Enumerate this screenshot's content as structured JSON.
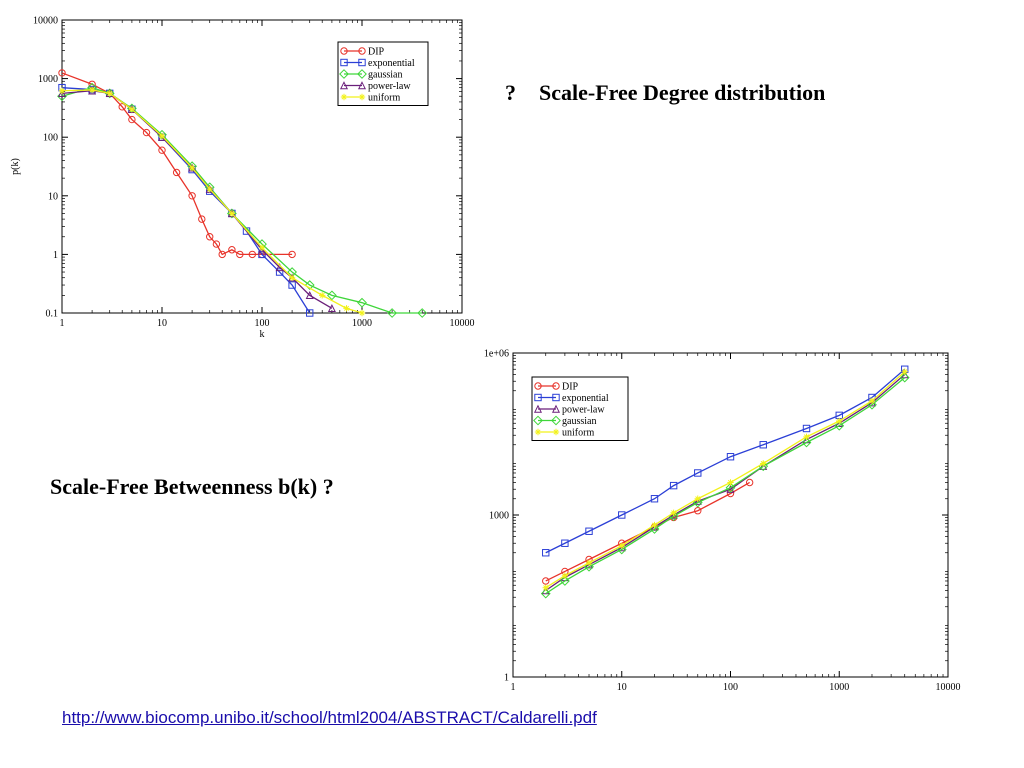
{
  "slide": {
    "heading_degree": "Scale-Free Degree distribution",
    "heading_degree_bullet": "?",
    "heading_betweenness": "Scale-Free Betweenness b(k) ?",
    "source_link": "http://www.biocomp.unibo.it/school/html2004/ABSTRACT/Caldarelli.pdf"
  },
  "chart_data": [
    {
      "type": "line",
      "log_x": true,
      "log_y": true,
      "xlabel": "k",
      "ylabel": "p(k)",
      "xlim": [
        1,
        10000
      ],
      "ylim": [
        0.1,
        10000
      ],
      "x_ticks": [
        "1",
        "10",
        "100",
        "1000",
        "10000"
      ],
      "y_ticks": [
        "0.1",
        "1",
        "10",
        "100",
        "1000",
        "10000"
      ],
      "legend_position": "top-right",
      "series": [
        {
          "name": "DIP",
          "color": "#e8332a",
          "marker": "circle",
          "x": [
            1,
            2,
            3,
            4,
            5,
            7,
            10,
            14,
            20,
            25,
            30,
            35,
            40,
            50,
            60,
            80,
            100,
            200
          ],
          "y": [
            1250,
            800,
            560,
            330,
            200,
            120,
            60,
            25,
            10,
            4,
            2,
            1.5,
            1,
            1.2,
            1,
            1,
            1,
            1
          ]
        },
        {
          "name": "exponential",
          "color": "#2b3fd6",
          "marker": "square",
          "x": [
            1,
            2,
            3,
            5,
            10,
            20,
            30,
            50,
            70,
            100,
            150,
            200,
            300
          ],
          "y": [
            700,
            650,
            560,
            300,
            100,
            28,
            12,
            5,
            2.5,
            1,
            0.5,
            0.3,
            0.1
          ]
        },
        {
          "name": "gaussian",
          "color": "#3fd63a",
          "marker": "diamond",
          "x": [
            1,
            2,
            3,
            5,
            10,
            20,
            30,
            50,
            100,
            200,
            300,
            500,
            1000,
            2000,
            4000
          ],
          "y": [
            500,
            700,
            560,
            310,
            110,
            32,
            14,
            5,
            1.5,
            0.5,
            0.3,
            0.2,
            0.15,
            0.1,
            0.1
          ]
        },
        {
          "name": "power-law",
          "color": "#6a1f7a",
          "marker": "triangle",
          "x": [
            1,
            2,
            3,
            5,
            10,
            20,
            30,
            50,
            100,
            150,
            200,
            300,
            500
          ],
          "y": [
            560,
            620,
            560,
            300,
            100,
            30,
            13,
            5,
            1.2,
            0.6,
            0.4,
            0.2,
            0.12
          ]
        },
        {
          "name": "uniform",
          "color": "#f2f21a",
          "marker": "star",
          "x": [
            1,
            2,
            3,
            5,
            10,
            20,
            30,
            50,
            100,
            200,
            400,
            700,
            1000
          ],
          "y": [
            620,
            640,
            560,
            300,
            105,
            30,
            13,
            5,
            1.3,
            0.4,
            0.2,
            0.12,
            0.1
          ]
        }
      ]
    },
    {
      "type": "line",
      "log_x": true,
      "log_y": true,
      "xlabel": "",
      "ylabel": "",
      "xlim": [
        1,
        10000
      ],
      "ylim": [
        1,
        1000000
      ],
      "x_ticks": [
        "1",
        "10",
        "100",
        "1000",
        "10000"
      ],
      "y_ticks": [
        "1",
        "1000",
        "1e+06"
      ],
      "legend_position": "top-left",
      "series": [
        {
          "name": "DIP",
          "color": "#e8332a",
          "marker": "circle",
          "x": [
            2,
            3,
            5,
            10,
            20,
            30,
            50,
            100,
            150
          ],
          "y": [
            60,
            90,
            150,
            300,
            600,
            900,
            1200,
            2500,
            4000
          ]
        },
        {
          "name": "exponential",
          "color": "#2b3fd6",
          "marker": "square",
          "x": [
            2,
            3,
            5,
            10,
            20,
            30,
            50,
            100,
            200,
            500,
            1000,
            2000,
            4000
          ],
          "y": [
            200,
            300,
            500,
            1000,
            2000,
            3500,
            6000,
            12000,
            20000,
            40000,
            70000,
            150000,
            500000
          ]
        },
        {
          "name": "power-law",
          "color": "#6a1f7a",
          "marker": "triangle",
          "x": [
            2,
            3,
            5,
            10,
            20,
            30,
            50,
            100,
            200,
            500,
            1000,
            2000,
            4000
          ],
          "y": [
            40,
            70,
            120,
            250,
            600,
            1000,
            1800,
            3000,
            8000,
            25000,
            50000,
            120000,
            400000
          ]
        },
        {
          "name": "gaussian",
          "color": "#3fd63a",
          "marker": "diamond",
          "x": [
            2,
            3,
            5,
            10,
            20,
            30,
            50,
            100,
            200,
            500,
            1000,
            2000,
            4000
          ],
          "y": [
            35,
            60,
            110,
            230,
            550,
            950,
            1700,
            3200,
            8000,
            22000,
            45000,
            110000,
            350000
          ]
        },
        {
          "name": "uniform",
          "color": "#f2f21a",
          "marker": "star",
          "x": [
            2,
            3,
            5,
            10,
            20,
            30,
            50,
            100,
            200,
            500,
            1000,
            2000,
            4000
          ],
          "y": [
            45,
            75,
            130,
            270,
            650,
            1100,
            2000,
            4000,
            9000,
            28000,
            55000,
            130000,
            450000
          ]
        }
      ]
    }
  ]
}
